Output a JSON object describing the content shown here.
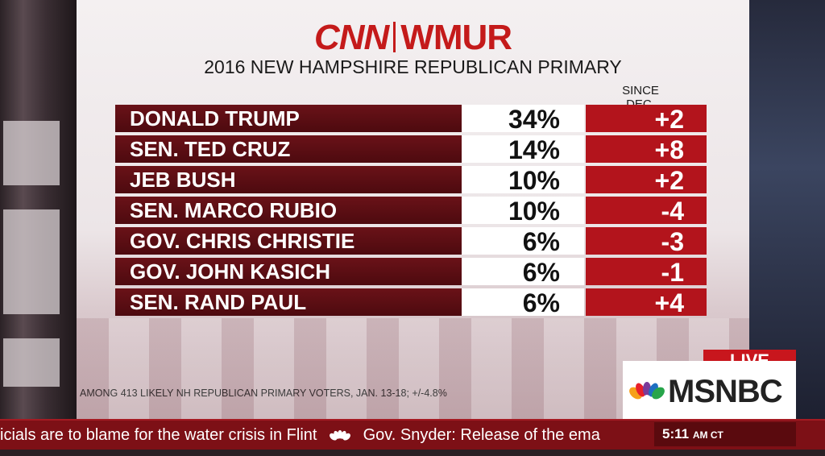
{
  "logo": {
    "left": "CNN",
    "right": "WMUR"
  },
  "title": "2016 NEW HAMPSHIRE REPUBLICAN PRIMARY",
  "since_header": "SINCE DEC.",
  "rows": [
    {
      "name": "DONALD TRUMP",
      "pct": "34%",
      "change": "+2"
    },
    {
      "name": "SEN. TED CRUZ",
      "pct": "14%",
      "change": "+8"
    },
    {
      "name": "JEB BUSH",
      "pct": "10%",
      "change": "+2"
    },
    {
      "name": "SEN. MARCO RUBIO",
      "pct": "10%",
      "change": "-4"
    },
    {
      "name": "GOV. CHRIS CHRISTIE",
      "pct": "6%",
      "change": "-3"
    },
    {
      "name": "GOV. JOHN KASICH",
      "pct": "6%",
      "change": "-1"
    },
    {
      "name": "SEN. RAND PAUL",
      "pct": "6%",
      "change": "+4"
    }
  ],
  "footnote": "AMONG 413 LIKELY NH REPUBLICAN PRIMARY VOTERS, JAN. 13-18; +/-4.8%",
  "network": {
    "live": "LIVE",
    "name": "MSNBC"
  },
  "ticker": {
    "item1": "icials are to blame for the water crisis in Flint",
    "item2": "Gov. Snyder: Release of the ema",
    "time": "5:11",
    "ampm": "AM CT"
  },
  "colors": {
    "accent": "#b3141c",
    "name_bar": "#5a0d12",
    "ticker": "#7d1016"
  }
}
